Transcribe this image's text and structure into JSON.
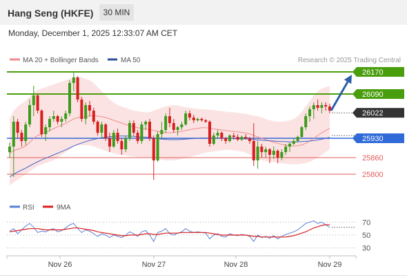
{
  "header": {
    "title": "Hang Seng (HKFE)",
    "interval": "30 MIN",
    "datetime": "Monday, December 1, 2025 12:33:07 AM CET"
  },
  "legend": {
    "ma20_label": "MA 20 + Bollinger Bands",
    "ma50_label": "MA 50",
    "copyright": "Research © 2025 Trading Central",
    "rsi_label": "RSI",
    "rsi_ma_label": "9MA"
  },
  "colors": {
    "bull": "#3c9a1c",
    "bear": "#d81e1e",
    "ma20": "#f08a8a",
    "band": "#fbd9d9",
    "ma50": "#3e64c8",
    "resistance": "#4a9e0d",
    "support": "#2f6ad8",
    "support_red": "#e25b5b",
    "arrow": "#2a5fa8",
    "current": "#333333",
    "rsi": "#5a7fd6",
    "rsi_ma": "#dc1e1e"
  },
  "chart_data": [
    {
      "type": "candlestick",
      "y_range": [
        25740,
        26185
      ],
      "x_labels": [
        "Nov 26",
        "Nov 27",
        "Nov 28",
        "Nov 29"
      ],
      "levels": [
        {
          "value": 26170,
          "label": "26170",
          "kind": "resistance"
        },
        {
          "value": 26090,
          "label": "26090",
          "kind": "resistance"
        },
        {
          "value": 26022,
          "label": "26022",
          "kind": "current"
        },
        {
          "value": 25930,
          "label": "25930",
          "kind": "pivot"
        },
        {
          "value": 25860,
          "label": "25860",
          "kind": "support"
        },
        {
          "value": 25800,
          "label": "25800",
          "kind": "support"
        }
      ],
      "candles": [
        [
          25880,
          25915,
          25860,
          25900
        ],
        [
          25900,
          26010,
          25790,
          25990
        ],
        [
          25990,
          26000,
          25930,
          25950
        ],
        [
          25950,
          25960,
          25900,
          25920
        ],
        [
          25920,
          25990,
          25905,
          25980
        ],
        [
          25980,
          26070,
          25970,
          26050
        ],
        [
          26050,
          26120,
          26010,
          26085
        ],
        [
          26085,
          26090,
          26020,
          26030
        ],
        [
          26030,
          26035,
          25935,
          25945
        ],
        [
          25945,
          25980,
          25920,
          25970
        ],
        [
          25970,
          26010,
          25955,
          26000
        ],
        [
          26000,
          26030,
          25990,
          26010
        ],
        [
          26010,
          26015,
          25980,
          25990
        ],
        [
          25990,
          26010,
          25970,
          26000
        ],
        [
          26000,
          26030,
          25990,
          26020
        ],
        [
          26020,
          26140,
          26010,
          26130
        ],
        [
          26130,
          26170,
          26100,
          26150
        ],
        [
          26150,
          26155,
          26060,
          26070
        ],
        [
          26070,
          26080,
          25990,
          26000
        ],
        [
          26000,
          26060,
          25980,
          26050
        ],
        [
          26050,
          26065,
          26010,
          26030
        ],
        [
          26030,
          26040,
          25980,
          25990
        ],
        [
          25990,
          25995,
          25940,
          25950
        ],
        [
          25950,
          25990,
          25930,
          25980
        ],
        [
          25980,
          25985,
          25920,
          25930
        ],
        [
          25930,
          25950,
          25880,
          25900
        ],
        [
          25900,
          25960,
          25895,
          25950
        ],
        [
          25950,
          25965,
          25910,
          25920
        ],
        [
          25920,
          25930,
          25870,
          25890
        ],
        [
          25890,
          25940,
          25880,
          25930
        ],
        [
          25930,
          25995,
          25920,
          25985
        ],
        [
          25985,
          25995,
          25940,
          25950
        ],
        [
          25950,
          25960,
          25910,
          25920
        ],
        [
          25920,
          25990,
          25910,
          25980
        ],
        [
          25980,
          25995,
          25960,
          25990
        ],
        [
          25990,
          26000,
          25920,
          25930
        ],
        [
          25930,
          25940,
          25780,
          25850
        ],
        [
          25850,
          25955,
          25845,
          25945
        ],
        [
          25945,
          25990,
          25930,
          25960
        ],
        [
          25960,
          26020,
          25950,
          26010
        ],
        [
          26010,
          26040,
          25970,
          25985
        ],
        [
          25985,
          26000,
          25950,
          25960
        ],
        [
          25960,
          25975,
          25940,
          25970
        ],
        [
          25970,
          25990,
          25960,
          25980
        ],
        [
          25980,
          26030,
          25975,
          26020
        ],
        [
          26020,
          26030,
          25995,
          26005
        ],
        [
          26005,
          26015,
          25985,
          25995
        ],
        [
          25995,
          26005,
          25990,
          26000
        ],
        [
          26000,
          26005,
          25990,
          25995
        ],
        [
          25995,
          26000,
          25985,
          25990
        ],
        [
          25990,
          25995,
          25900,
          25910
        ],
        [
          25910,
          25950,
          25905,
          25940
        ],
        [
          25940,
          25960,
          25930,
          25950
        ],
        [
          25950,
          25955,
          25920,
          25930
        ],
        [
          25930,
          25935,
          25910,
          25920
        ],
        [
          25920,
          25945,
          25915,
          25940
        ],
        [
          25940,
          25950,
          25925,
          25935
        ],
        [
          25935,
          25945,
          25920,
          25925
        ],
        [
          25925,
          25940,
          25920,
          25935
        ],
        [
          25935,
          25945,
          25925,
          25930
        ],
        [
          25930,
          25935,
          25910,
          25920
        ],
        [
          25920,
          25985,
          25830,
          25850
        ],
        [
          25850,
          25920,
          25820,
          25900
        ],
        [
          25900,
          25910,
          25860,
          25880
        ],
        [
          25880,
          25900,
          25860,
          25890
        ],
        [
          25890,
          25895,
          25840,
          25870
        ],
        [
          25870,
          25900,
          25855,
          25885
        ],
        [
          25885,
          25890,
          25840,
          25860
        ],
        [
          25860,
          25890,
          25850,
          25880
        ],
        [
          25880,
          25910,
          25870,
          25900
        ],
        [
          25900,
          25915,
          25880,
          25910
        ],
        [
          25910,
          25930,
          25905,
          25920
        ],
        [
          25920,
          25940,
          25915,
          25935
        ],
        [
          25935,
          25975,
          25930,
          25970
        ],
        [
          25970,
          26020,
          25960,
          26010
        ],
        [
          26010,
          26045,
          25990,
          26035
        ],
        [
          26035,
          26060,
          26000,
          26050
        ],
        [
          26050,
          26070,
          26030,
          26040
        ],
        [
          26040,
          26060,
          26020,
          26050
        ],
        [
          26050,
          26060,
          26030,
          26045
        ],
        [
          26045,
          26055,
          26020,
          26030
        ]
      ],
      "ma20": [
        25875,
        25885,
        25890,
        25895,
        25902,
        25915,
        25930,
        25940,
        25945,
        25950,
        25958,
        25965,
        25972,
        25978,
        25984,
        25992,
        26000,
        26005,
        26005,
        26008,
        26010,
        26012,
        26010,
        26008,
        26005,
        26000,
        25995,
        25990,
        25985,
        25980,
        25975,
        25972,
        25968,
        25965,
        25963,
        25962,
        25958,
        25955,
        25952,
        25950,
        25950,
        25951,
        25953,
        25955,
        25958,
        25961,
        25964,
        25966,
        25968,
        25968,
        25966,
        25964,
        25962,
        25960,
        25958,
        25956,
        25955,
        25953,
        25951,
        25949,
        25946,
        25940,
        25935,
        25930,
        25925,
        25920,
        25916,
        25912,
        25908,
        25905,
        25903,
        25902,
        25903,
        25906,
        25912,
        25920,
        25930,
        25940,
        25950,
        25958,
        25966
      ],
      "bb_upper": [
        26000,
        26030,
        26045,
        26055,
        26065,
        26080,
        26095,
        26105,
        26110,
        26115,
        26120,
        26125,
        26130,
        26135,
        26140,
        26145,
        26150,
        26152,
        26150,
        26145,
        26140,
        26130,
        26115,
        26100,
        26085,
        26070,
        26060,
        26050,
        26045,
        26040,
        26035,
        26030,
        26028,
        26025,
        26024,
        26024,
        26030,
        26035,
        26040,
        26045,
        26048,
        26050,
        26048,
        26045,
        26042,
        26040,
        26038,
        26036,
        26035,
        26034,
        26033,
        26032,
        26030,
        26028,
        26026,
        26025,
        26024,
        26022,
        26020,
        26018,
        26015,
        26012,
        26010,
        26005,
        26000,
        25995,
        25992,
        25990,
        25990,
        25992,
        25995,
        26000,
        26010,
        26025,
        26045,
        26065,
        26085,
        26100,
        26110,
        26115,
        26118
      ],
      "bb_lower": [
        25760,
        25770,
        25780,
        25790,
        25800,
        25810,
        25820,
        25830,
        25835,
        25840,
        25845,
        25850,
        25860,
        25870,
        25880,
        25890,
        25900,
        25905,
        25905,
        25905,
        25905,
        25900,
        25895,
        25890,
        25885,
        25880,
        25875,
        25872,
        25870,
        25868,
        25866,
        25864,
        25862,
        25862,
        25862,
        25862,
        25858,
        25855,
        25852,
        25850,
        25850,
        25850,
        25852,
        25855,
        25858,
        25862,
        25866,
        25870,
        25874,
        25878,
        25880,
        25882,
        25884,
        25886,
        25888,
        25888,
        25886,
        25884,
        25882,
        25878,
        25870,
        25862,
        25855,
        25850,
        25848,
        25846,
        25844,
        25842,
        25840,
        25838,
        25836,
        25836,
        25836,
        25838,
        25840,
        25845,
        25852,
        25860,
        25870,
        25880,
        25890
      ],
      "ma50": [
        25790,
        25800,
        25808,
        25815,
        25822,
        25830,
        25838,
        25845,
        25852,
        25858,
        25864,
        25870,
        25876,
        25882,
        25888,
        25895,
        25902,
        25908,
        25913,
        25918,
        25922,
        25926,
        25929,
        25932,
        25934,
        25936,
        25937,
        25938,
        25938,
        25938,
        25938,
        25937,
        25936,
        25935,
        25934,
        25933,
        25931,
        25929,
        25927,
        25926,
        25925,
        25925,
        25925,
        25926,
        25927,
        25928,
        25929,
        25930,
        25931,
        25931,
        25931,
        25931,
        25931,
        25930,
        25930,
        25930,
        25929,
        25929,
        25928,
        25928,
        25927,
        25925,
        25924,
        25923,
        25922,
        25921,
        25920,
        25919,
        25918,
        25918,
        25917,
        25917,
        25917,
        25918,
        25919,
        25920,
        25922,
        25924,
        25927,
        25930,
        25933
      ]
    },
    {
      "type": "line",
      "y_range": [
        20,
        80
      ],
      "y_ticks": [
        70,
        50,
        30
      ],
      "series": [
        {
          "name": "RSI",
          "values": [
            56,
            60,
            52,
            58,
            64,
            68,
            62,
            54,
            56,
            55,
            58,
            60,
            55,
            57,
            61,
            66,
            68,
            60,
            54,
            58,
            56,
            52,
            48,
            52,
            50,
            46,
            50,
            48,
            46,
            50,
            55,
            52,
            48,
            55,
            57,
            50,
            40,
            54,
            56,
            60,
            52,
            50,
            53,
            55,
            60,
            56,
            54,
            55,
            54,
            53,
            44,
            50,
            52,
            48,
            47,
            52,
            50,
            49,
            51,
            50,
            48,
            40,
            50,
            46,
            48,
            45,
            49,
            44,
            48,
            51,
            53,
            55,
            58,
            63,
            68,
            70,
            72,
            68,
            70,
            66,
            62
          ]
        },
        {
          "name": "9MA",
          "values": [
            55,
            56,
            57,
            58,
            59,
            60,
            60,
            60,
            59,
            58,
            58,
            58,
            58,
            58,
            59,
            60,
            61,
            61,
            60,
            59,
            58,
            57,
            55,
            54,
            53,
            52,
            51,
            50,
            49,
            49,
            50,
            50,
            50,
            51,
            52,
            52,
            51,
            51,
            52,
            53,
            53,
            53,
            53,
            54,
            54,
            54,
            54,
            54,
            54,
            54,
            53,
            52,
            51,
            50,
            50,
            50,
            50,
            50,
            50,
            50,
            49,
            48,
            48,
            47,
            47,
            47,
            47,
            47,
            47,
            47,
            48,
            49,
            51,
            53,
            55,
            58,
            61,
            63,
            65,
            66,
            66
          ]
        }
      ]
    }
  ]
}
